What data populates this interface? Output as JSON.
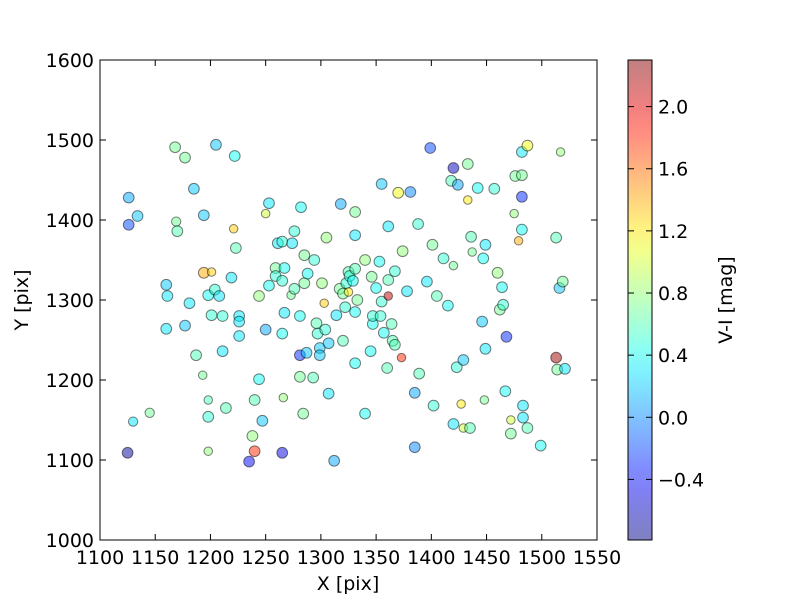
{
  "chart_data": {
    "type": "scatter",
    "xlabel": "X [pix]",
    "ylabel": "Y [pix]",
    "xlim": [
      1100,
      1550
    ],
    "ylim": [
      1000,
      1600
    ],
    "xticks": [
      1100,
      1150,
      1200,
      1250,
      1300,
      1350,
      1400,
      1450,
      1500,
      1550
    ],
    "yticks": [
      1000,
      1100,
      1200,
      1300,
      1400,
      1500,
      1600
    ],
    "colormap": "jet",
    "alpha": 0.5,
    "edgecolor": "#000000",
    "series": [
      {
        "x": [
          1125,
          1126,
          1126,
          1134,
          1130,
          1145,
          1160,
          1161,
          1160,
          1168,
          1177,
          1169,
          1170,
          1177,
          1181,
          1185,
          1194,
          1187,
          1193,
          1194,
          1201,
          1198,
          1204,
          1208,
          1201,
          1211,
          1205,
          1222,
          1221,
          1223,
          1219,
          1226,
          1226,
          1226,
          1211,
          1198,
          1198,
          1214,
          1198,
          1238,
          1235,
          1240,
          1244,
          1240,
          1247,
          1244,
          1250,
          1253,
          1253,
          1250,
          1261,
          1259,
          1259,
          1265,
          1267,
          1265,
          1265,
          1266,
          1265,
          1267,
          1273,
          1276,
          1276,
          1274,
          1282,
          1285,
          1285,
          1281,
          1281,
          1281,
          1284,
          1288,
          1287,
          1293,
          1294,
          1296,
          1297,
          1299,
          1299,
          1301,
          1303,
          1304,
          1305,
          1307,
          1307,
          1312,
          1314,
          1318,
          1317,
          1320,
          1322,
          1320,
          1323,
          1325,
          1325,
          1326,
          1331,
          1331,
          1331,
          1329,
          1333,
          1331,
          1331,
          1340,
          1340,
          1345,
          1347,
          1347,
          1350,
          1346,
          1353,
          1355,
          1355,
          1354,
          1357,
          1360,
          1361,
          1361,
          1361,
          1364,
          1365,
          1367,
          1367,
          1370,
          1373,
          1374,
          1378,
          1381,
          1385,
          1385,
          1388,
          1389,
          1396,
          1399,
          1401,
          1402,
          1405,
          1411,
          1415,
          1418,
          1420,
          1420,
          1420,
          1423,
          1424,
          1427,
          1429,
          1429,
          1433,
          1433,
          1435,
          1436,
          1437,
          1442,
          1448,
          1447,
          1449,
          1449,
          1446,
          1457,
          1460,
          1462,
          1464,
          1465,
          1467,
          1468,
          1472,
          1472,
          1475,
          1476,
          1479,
          1482,
          1482,
          1482,
          1482,
          1487,
          1483,
          1483,
          1487,
          1499,
          1513,
          1513,
          1514,
          1516,
          1517,
          1519,
          1521
        ],
        "values": [
          1109,
          1428,
          1394,
          1405,
          1148,
          1159,
          1319,
          1305,
          1264,
          1491,
          1478,
          1398,
          1386,
          1268,
          1296,
          1439,
          1406,
          1231,
          1206,
          1334,
          1335,
          1306,
          1313,
          1305,
          1281,
          1280,
          1494,
          1480,
          1389,
          1365,
          1328,
          1280,
          1273,
          1255,
          1236,
          1175,
          1154,
          1165,
          1111,
          1130,
          1098,
          1111,
          1201,
          1175,
          1149,
          1305,
          1408,
          1421,
          1318,
          1263,
          1371,
          1340,
          1330,
          1324,
          1340,
          1373,
          1109,
          1178,
          1258,
          1284,
          1306,
          1386,
          1314,
          1371,
          1416,
          1356,
          1321,
          1280,
          1231,
          1204,
          1158,
          1333,
          1234,
          1203,
          1350,
          1271,
          1258,
          1240,
          1231,
          1321,
          1296,
          1263,
          1378,
          1246,
          1183,
          1099,
          1281,
          1420,
          1314,
          1308,
          1291,
          1249,
          1321,
          1310,
          1335,
          1330,
          1410,
          1381,
          1339,
          1324,
          1300,
          1285,
          1221,
          1350,
          1158,
          1236,
          1270,
          1280,
          1315,
          1329,
          1348,
          1445,
          1298,
          1280,
          1259,
          1215,
          1325,
          1305,
          1392,
          1270,
          1249,
          1244,
          1336,
          1434,
          1228,
          1361,
          1311,
          1435,
          1184,
          1116,
          1395,
          1208,
          1323,
          1490,
          1369,
          1168,
          1305,
          1352,
          1293,
          1449,
          1343,
          1465,
          1145,
          1216,
          1444,
          1170,
          1140,
          1225,
          1470,
          1425,
          1140,
          1379,
          1360,
          1440,
          1175,
          1352,
          1369,
          1239,
          1273,
          1439,
          1334,
          1288,
          1316,
          1294,
          1186,
          1254,
          1150,
          1133,
          1408,
          1455,
          1374,
          1388,
          1456,
          1429,
          1485,
          1493,
          1153,
          1168,
          1140,
          1118,
          1228,
          1378,
          1213,
          1315,
          1485,
          1323,
          1214
        ],
        "color_values": [
          -0.7,
          0.1,
          -0.2,
          0.2,
          0.3,
          0.7,
          0.2,
          0.3,
          0.3,
          0.7,
          0.7,
          0.7,
          0.6,
          0.2,
          0.3,
          0.2,
          0.2,
          0.6,
          0.7,
          1.4,
          1.3,
          0.4,
          0.5,
          0.3,
          0.5,
          0.5,
          0.2,
          0.4,
          1.3,
          0.6,
          0.3,
          0.3,
          0.3,
          0.3,
          0.3,
          0.6,
          0.5,
          0.6,
          0.8,
          0.8,
          -0.4,
          1.8,
          0.4,
          0.6,
          0.2,
          0.8,
          1.0,
          0.3,
          0.4,
          0.1,
          0.3,
          0.7,
          0.5,
          0.5,
          0.4,
          0.5,
          -0.5,
          0.8,
          0.4,
          0.3,
          0.7,
          0.5,
          0.6,
          0.3,
          0.4,
          0.7,
          0.7,
          0.4,
          -0.3,
          0.7,
          0.7,
          0.4,
          0.2,
          0.6,
          0.5,
          0.6,
          0.5,
          0.2,
          0.2,
          0.8,
          1.3,
          0.5,
          0.8,
          0.2,
          0.3,
          0.1,
          0.3,
          0.1,
          0.7,
          0.7,
          0.5,
          0.6,
          0.5,
          1.2,
          0.6,
          0.5,
          0.7,
          0.3,
          0.6,
          0.4,
          0.7,
          0.4,
          0.4,
          0.8,
          0.4,
          0.4,
          0.4,
          0.5,
          0.4,
          0.7,
          0.4,
          0.2,
          0.5,
          0.5,
          0.4,
          0.6,
          0.6,
          2.1,
          0.3,
          0.6,
          0.6,
          0.6,
          0.5,
          1.1,
          1.8,
          0.8,
          0.3,
          0.0,
          0.1,
          0.0,
          0.5,
          0.6,
          0.3,
          -0.2,
          0.7,
          0.5,
          0.6,
          0.5,
          0.4,
          0.6,
          0.7,
          -0.6,
          0.3,
          0.5,
          0.1,
          1.2,
          1.0,
          0.2,
          0.7,
          1.2,
          0.6,
          0.6,
          0.7,
          0.4,
          0.7,
          0.4,
          0.3,
          0.3,
          0.2,
          0.5,
          0.8,
          0.7,
          0.4,
          0.5,
          0.4,
          -0.3,
          1.0,
          0.7,
          0.8,
          0.7,
          1.4,
          0.4,
          0.7,
          -0.3,
          0.3,
          1.1,
          0.3,
          0.3,
          0.6,
          0.4,
          2.2,
          0.6,
          0.7,
          0.2,
          0.8,
          0.7,
          0.3
        ],
        "sizes": [
          40,
          40,
          40,
          40,
          30,
          30,
          40,
          40,
          40,
          40,
          40,
          30,
          40,
          40,
          40,
          40,
          40,
          40,
          25,
          40,
          25,
          40,
          40,
          40,
          40,
          40,
          40,
          40,
          25,
          40,
          40,
          40,
          40,
          40,
          40,
          25,
          40,
          40,
          25,
          40,
          40,
          40,
          40,
          40,
          40,
          40,
          25,
          40,
          40,
          40,
          40,
          40,
          40,
          40,
          40,
          40,
          40,
          25,
          40,
          40,
          25,
          40,
          40,
          40,
          40,
          40,
          40,
          40,
          40,
          40,
          40,
          40,
          40,
          40,
          40,
          40,
          40,
          40,
          40,
          40,
          25,
          40,
          40,
          40,
          40,
          40,
          40,
          40,
          40,
          40,
          40,
          40,
          40,
          25,
          40,
          40,
          40,
          40,
          40,
          40,
          40,
          40,
          40,
          40,
          40,
          40,
          40,
          40,
          40,
          40,
          40,
          40,
          40,
          40,
          40,
          40,
          40,
          25,
          40,
          40,
          40,
          40,
          40,
          40,
          25,
          40,
          40,
          40,
          40,
          40,
          40,
          40,
          40,
          40,
          40,
          40,
          40,
          40,
          40,
          40,
          25,
          40,
          40,
          40,
          40,
          25,
          25,
          40,
          40,
          25,
          40,
          40,
          25,
          40,
          25,
          40,
          40,
          40,
          40,
          40,
          40,
          40,
          40,
          40,
          40,
          40,
          25,
          40,
          25,
          40,
          25,
          40,
          40,
          40,
          40,
          40,
          40,
          40,
          40,
          40,
          40,
          40,
          40,
          40,
          25,
          40,
          40
        ]
      }
    ],
    "colorbar": {
      "label": "V-I [mag]",
      "clim": [
        -0.79,
        2.3
      ],
      "ticks": [
        {
          "value": -0.4,
          "label": "−0.4"
        },
        {
          "value": 0.0,
          "label": "0.0"
        },
        {
          "value": 0.4,
          "label": "0.4"
        },
        {
          "value": 0.8,
          "label": "0.8"
        },
        {
          "value": 1.2,
          "label": "1.2"
        },
        {
          "value": 1.6,
          "label": "1.6"
        },
        {
          "value": 2.0,
          "label": "2.0"
        }
      ]
    }
  }
}
